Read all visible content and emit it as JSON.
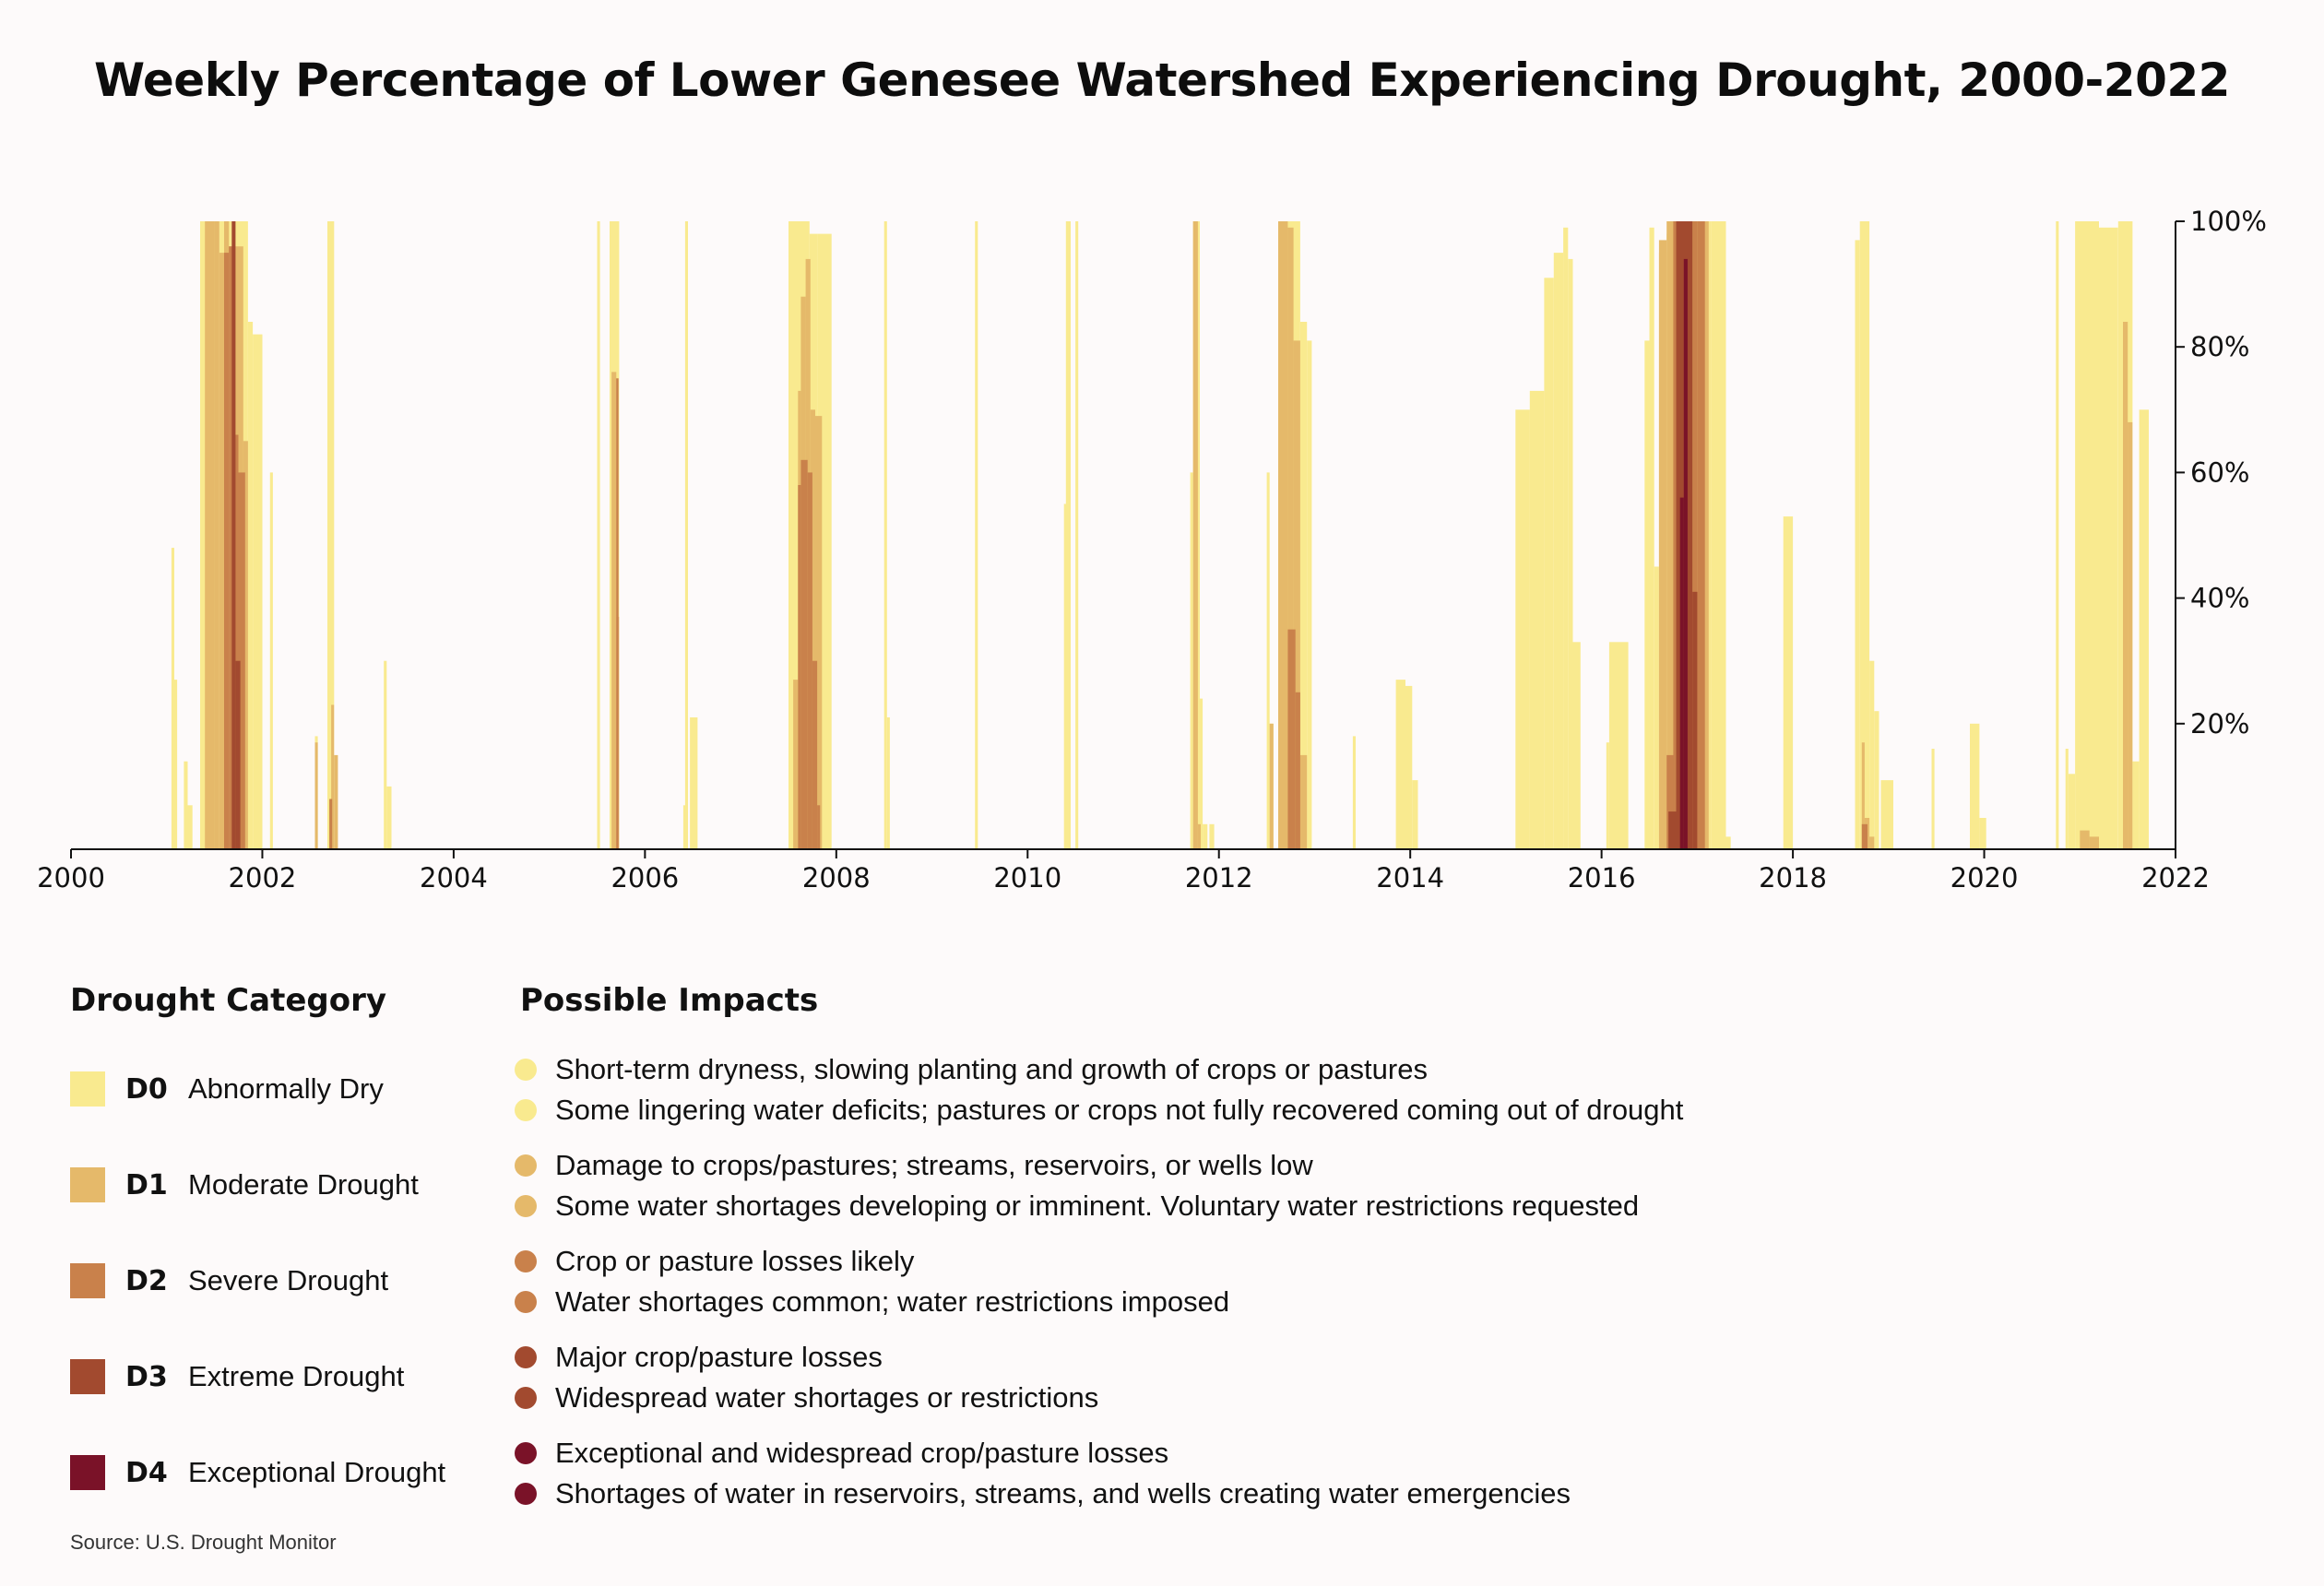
{
  "chart_data": {
    "type": "bar",
    "title": "Weekly Percentage of Lower Genesee Watershed Experiencing Drought, 2000-2022",
    "xlabel": "",
    "ylabel": "",
    "xlim": [
      2000,
      2022
    ],
    "ylim": [
      0,
      100
    ],
    "x_ticks": [
      "2000",
      "2002",
      "2004",
      "2006",
      "2008",
      "2010",
      "2012",
      "2014",
      "2016",
      "2018",
      "2020",
      "2022"
    ],
    "y_ticks": [
      {
        "value": 20,
        "label": "20%"
      },
      {
        "value": 40,
        "label": "40%"
      },
      {
        "value": 60,
        "label": "60%"
      },
      {
        "value": 80,
        "label": "80%"
      },
      {
        "value": 100,
        "label": "100%"
      }
    ],
    "series": [
      {
        "name": "D0",
        "color": "#f9ea8f",
        "bars": [
          [
            2001.05,
            2001.08,
            48
          ],
          [
            2001.08,
            2001.11,
            27
          ],
          [
            2001.18,
            2001.22,
            14
          ],
          [
            2001.22,
            2001.27,
            7
          ],
          [
            2001.35,
            2001.45,
            100
          ],
          [
            2001.45,
            2001.55,
            100
          ],
          [
            2001.55,
            2001.75,
            100
          ],
          [
            2001.75,
            2001.85,
            100
          ],
          [
            2001.85,
            2001.9,
            84
          ],
          [
            2001.9,
            2002.0,
            82
          ],
          [
            2002.08,
            2002.11,
            60
          ],
          [
            2002.55,
            2002.58,
            18
          ],
          [
            2002.68,
            2002.75,
            100
          ],
          [
            2003.27,
            2003.3,
            30
          ],
          [
            2003.3,
            2003.35,
            10
          ],
          [
            2005.5,
            2005.53,
            100
          ],
          [
            2005.63,
            2005.73,
            100
          ],
          [
            2006.4,
            2006.43,
            7
          ],
          [
            2006.42,
            2006.45,
            100
          ],
          [
            2006.47,
            2006.55,
            21
          ],
          [
            2007.5,
            2007.72,
            100
          ],
          [
            2007.72,
            2007.8,
            98
          ],
          [
            2007.8,
            2007.95,
            98
          ],
          [
            2008.5,
            2008.53,
            100
          ],
          [
            2008.53,
            2008.56,
            21
          ],
          [
            2009.45,
            2009.48,
            100
          ],
          [
            2010.38,
            2010.4,
            55
          ],
          [
            2010.4,
            2010.45,
            100
          ],
          [
            2010.5,
            2010.53,
            100
          ],
          [
            2011.7,
            2011.73,
            60
          ],
          [
            2011.73,
            2011.8,
            100
          ],
          [
            2011.8,
            2011.83,
            24
          ],
          [
            2011.83,
            2011.88,
            4
          ],
          [
            2011.9,
            2011.95,
            4
          ],
          [
            2012.5,
            2012.53,
            60
          ],
          [
            2012.53,
            2012.57,
            20
          ],
          [
            2012.65,
            2012.85,
            100
          ],
          [
            2012.85,
            2012.92,
            84
          ],
          [
            2012.92,
            2012.97,
            81
          ],
          [
            2013.4,
            2013.43,
            18
          ],
          [
            2013.85,
            2013.95,
            27
          ],
          [
            2013.95,
            2014.02,
            26
          ],
          [
            2014.02,
            2014.08,
            11
          ],
          [
            2015.1,
            2015.25,
            70
          ],
          [
            2015.25,
            2015.4,
            73
          ],
          [
            2015.4,
            2015.5,
            91
          ],
          [
            2015.5,
            2015.6,
            95
          ],
          [
            2015.6,
            2015.65,
            99
          ],
          [
            2015.65,
            2015.7,
            94
          ],
          [
            2015.7,
            2015.78,
            33
          ],
          [
            2016.05,
            2016.08,
            17
          ],
          [
            2016.08,
            2016.28,
            33
          ],
          [
            2016.45,
            2016.5,
            81
          ],
          [
            2016.5,
            2016.55,
            99
          ],
          [
            2016.55,
            2016.6,
            45
          ],
          [
            2016.6,
            2016.68,
            95
          ],
          [
            2016.68,
            2016.75,
            98
          ],
          [
            2016.75,
            2017.15,
            100
          ],
          [
            2017.15,
            2017.3,
            100
          ],
          [
            2017.3,
            2017.35,
            2
          ],
          [
            2017.9,
            2018.0,
            53
          ],
          [
            2017.92,
            2017.96,
            8
          ],
          [
            2018.65,
            2018.7,
            97
          ],
          [
            2018.7,
            2018.8,
            100
          ],
          [
            2018.8,
            2018.85,
            30
          ],
          [
            2018.85,
            2018.9,
            22
          ],
          [
            2018.92,
            2019.05,
            11
          ],
          [
            2019.45,
            2019.48,
            16
          ],
          [
            2019.85,
            2019.95,
            20
          ],
          [
            2019.95,
            2020.02,
            5
          ],
          [
            2020.75,
            2020.78,
            100
          ],
          [
            2020.85,
            2020.88,
            16
          ],
          [
            2020.88,
            2020.95,
            12
          ],
          [
            2020.95,
            2021.2,
            100
          ],
          [
            2021.2,
            2021.4,
            99
          ],
          [
            2021.4,
            2021.55,
            100
          ],
          [
            2021.55,
            2021.62,
            14
          ],
          [
            2021.62,
            2021.72,
            70
          ]
        ]
      },
      {
        "name": "D1",
        "color": "#e5b96a",
        "bars": [
          [
            2001.4,
            2001.5,
            100
          ],
          [
            2001.5,
            2001.55,
            100
          ],
          [
            2001.55,
            2001.6,
            95
          ],
          [
            2001.6,
            2001.65,
            100
          ],
          [
            2001.65,
            2001.8,
            96
          ],
          [
            2001.8,
            2001.85,
            65
          ],
          [
            2002.55,
            2002.58,
            17
          ],
          [
            2002.72,
            2002.75,
            23
          ],
          [
            2002.75,
            2002.79,
            15
          ],
          [
            2005.65,
            2005.7,
            76
          ],
          [
            2005.7,
            2005.73,
            37
          ],
          [
            2007.55,
            2007.6,
            27
          ],
          [
            2007.6,
            2007.63,
            73
          ],
          [
            2007.63,
            2007.68,
            88
          ],
          [
            2007.68,
            2007.73,
            94
          ],
          [
            2007.73,
            2007.78,
            70
          ],
          [
            2007.78,
            2007.85,
            69
          ],
          [
            2011.73,
            2011.78,
            100
          ],
          [
            2011.78,
            2011.81,
            4
          ],
          [
            2012.53,
            2012.57,
            20
          ],
          [
            2012.62,
            2012.72,
            100
          ],
          [
            2012.72,
            2012.78,
            99
          ],
          [
            2012.78,
            2012.85,
            81
          ],
          [
            2012.85,
            2012.92,
            15
          ],
          [
            2016.6,
            2016.68,
            97
          ],
          [
            2016.68,
            2016.75,
            100
          ],
          [
            2016.75,
            2017.05,
            100
          ],
          [
            2017.05,
            2017.12,
            100
          ],
          [
            2018.72,
            2018.75,
            17
          ],
          [
            2018.75,
            2018.8,
            5
          ],
          [
            2018.8,
            2018.85,
            2
          ],
          [
            2021.0,
            2021.1,
            3
          ],
          [
            2021.1,
            2021.2,
            2
          ],
          [
            2021.45,
            2021.5,
            84
          ],
          [
            2021.5,
            2021.55,
            68
          ]
        ]
      },
      {
        "name": "D2",
        "color": "#c9814b",
        "bars": [
          [
            2001.6,
            2001.65,
            95
          ],
          [
            2001.65,
            2001.7,
            96
          ],
          [
            2001.7,
            2001.75,
            66
          ],
          [
            2001.75,
            2001.82,
            60
          ],
          [
            2002.7,
            2002.73,
            8
          ],
          [
            2005.7,
            2005.72,
            75
          ],
          [
            2007.6,
            2007.63,
            58
          ],
          [
            2007.63,
            2007.7,
            62
          ],
          [
            2007.7,
            2007.75,
            60
          ],
          [
            2007.75,
            2007.8,
            30
          ],
          [
            2007.8,
            2007.83,
            7
          ],
          [
            2012.72,
            2012.8,
            35
          ],
          [
            2012.8,
            2012.85,
            25
          ],
          [
            2016.68,
            2016.75,
            15
          ],
          [
            2016.75,
            2017.0,
            100
          ],
          [
            2017.0,
            2017.08,
            100
          ],
          [
            2018.72,
            2018.78,
            4
          ]
        ]
      },
      {
        "name": "D3",
        "color": "#a24a2f",
        "bars": [
          [
            2001.68,
            2001.72,
            100
          ],
          [
            2001.72,
            2001.77,
            30
          ],
          [
            2016.7,
            2016.78,
            6
          ],
          [
            2016.78,
            2016.95,
            100
          ],
          [
            2016.95,
            2017.0,
            41
          ]
        ]
      },
      {
        "name": "D4",
        "color": "#7a1228",
        "bars": [
          [
            2016.82,
            2016.86,
            56
          ],
          [
            2016.86,
            2016.9,
            94
          ]
        ]
      }
    ]
  },
  "legend": {
    "categories_heading": "Drought Category",
    "impacts_heading": "Possible Impacts",
    "categories": [
      {
        "code": "D0",
        "name": "Abnormally Dry",
        "color": "#f9ea8f"
      },
      {
        "code": "D1",
        "name": "Moderate Drought",
        "color": "#e5b96a"
      },
      {
        "code": "D2",
        "name": "Severe Drought",
        "color": "#c9814b"
      },
      {
        "code": "D3",
        "name": "Extreme Drought",
        "color": "#a24a2f"
      },
      {
        "code": "D4",
        "name": "Exceptional Drought",
        "color": "#7a1228"
      }
    ],
    "impacts": [
      {
        "color": "#f9ea8f",
        "items": [
          "Short-term dryness, slowing planting and growth of crops or pastures",
          "Some lingering water deficits; pastures or crops not fully recovered coming out of drought"
        ]
      },
      {
        "color": "#e5b96a",
        "items": [
          "Damage to crops/pastures; streams, reservoirs, or wells low",
          "Some water shortages developing or imminent. Voluntary water restrictions requested"
        ]
      },
      {
        "color": "#c9814b",
        "items": [
          "Crop or pasture losses likely",
          "Water shortages common; water restrictions imposed"
        ]
      },
      {
        "color": "#a24a2f",
        "items": [
          "Major crop/pasture losses",
          "Widespread water shortages or restrictions"
        ]
      },
      {
        "color": "#7a1228",
        "items": [
          "Exceptional and widespread crop/pasture losses",
          "Shortages of water in reservoirs, streams, and wells creating water emergencies"
        ]
      }
    ]
  },
  "source": "Source: U.S. Drought Monitor"
}
